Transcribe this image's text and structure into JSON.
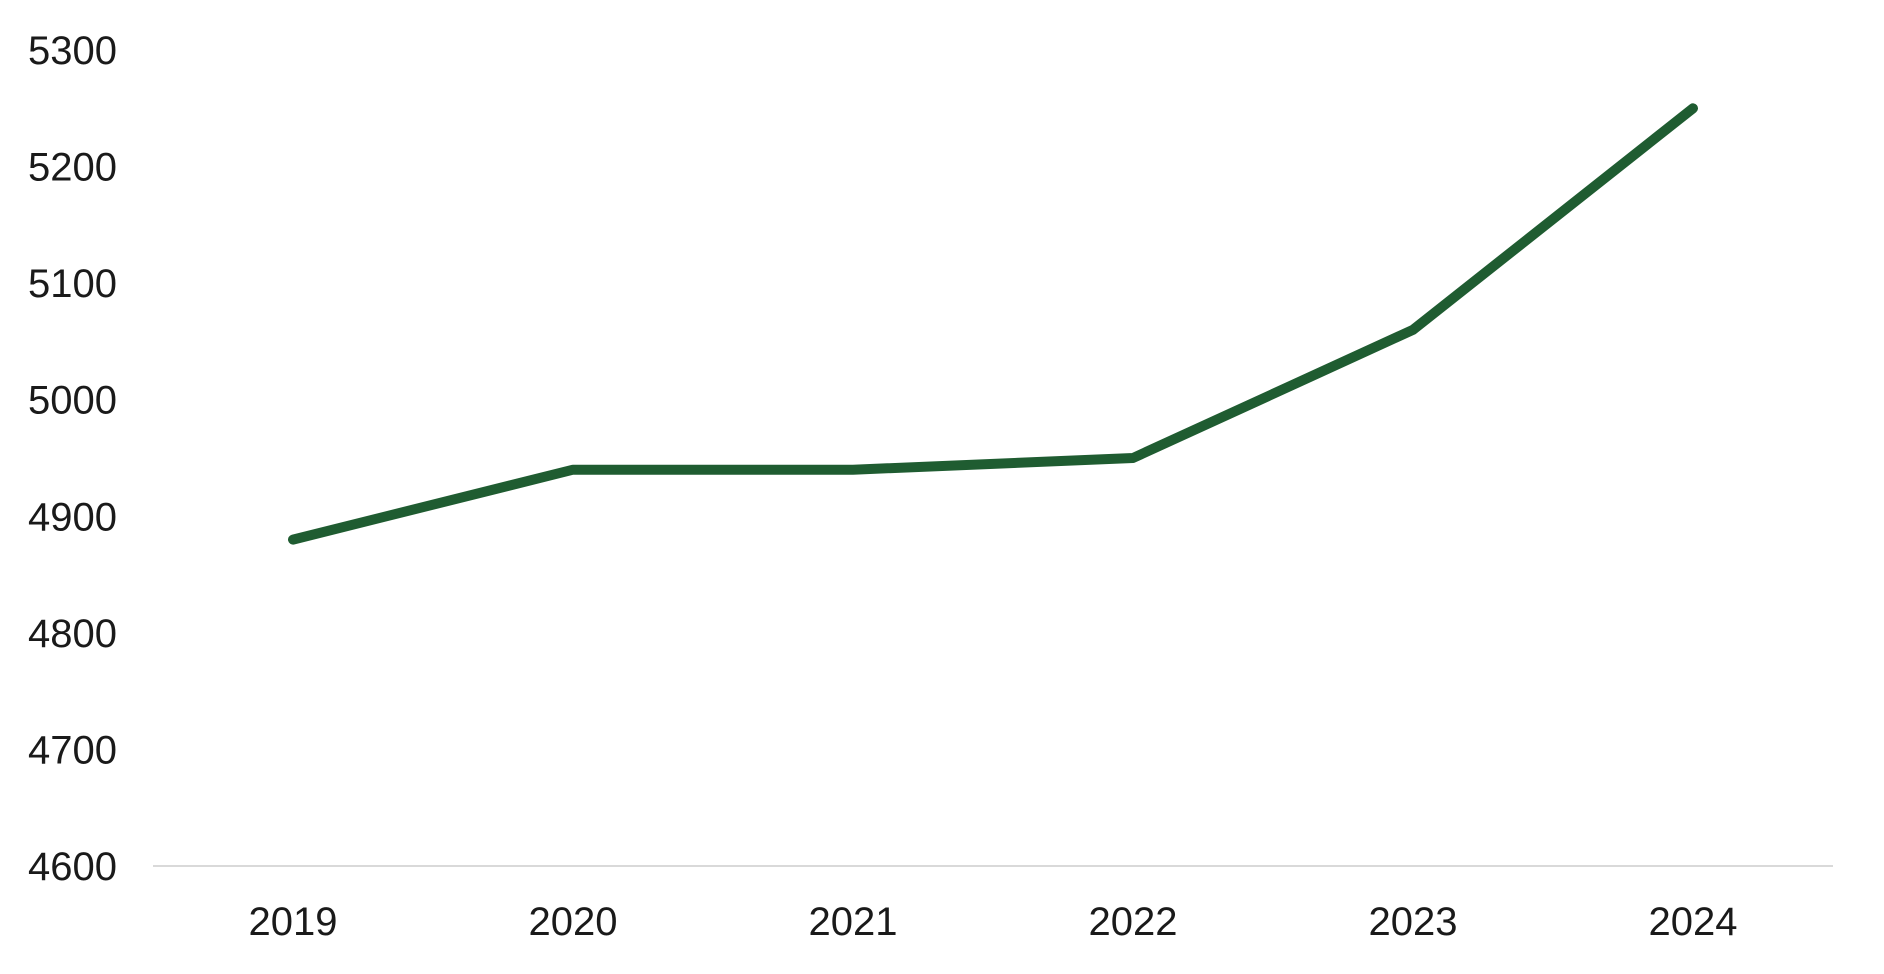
{
  "chart_data": {
    "type": "line",
    "title": "",
    "xlabel": "",
    "ylabel": "",
    "categories": [
      "2019",
      "2020",
      "2021",
      "2022",
      "2023",
      "2024"
    ],
    "series": [
      {
        "name": "series-1",
        "values": [
          4880,
          4940,
          4940,
          4950,
          5060,
          5250
        ]
      }
    ],
    "ylim": [
      4600,
      5300
    ],
    "ytick_step": 100,
    "ytick_labels": [
      "4600",
      "4700",
      "4800",
      "4900",
      "5000",
      "5100",
      "5200",
      "5300"
    ],
    "grid": false,
    "legend": false,
    "colors": {
      "line": "#1F5C31",
      "axis_line": "#D9D9D9",
      "tick_label": "#1A1A1A",
      "background": "#FFFFFF"
    },
    "line_width": 10
  }
}
